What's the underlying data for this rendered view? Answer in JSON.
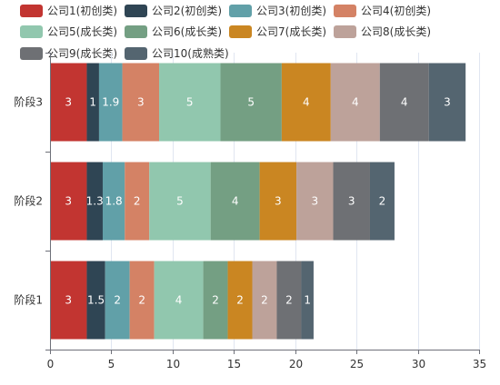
{
  "chart_data": {
    "type": "bar",
    "orientation": "horizontal",
    "stacked": true,
    "categories": [
      "阶段1",
      "阶段2",
      "阶段3"
    ],
    "xlim": [
      0,
      35
    ],
    "xticks": [
      0,
      5,
      10,
      15,
      20,
      25,
      30,
      35
    ],
    "legend_position": "top",
    "grid": "vertical",
    "series": [
      {
        "name": "公司1(初创类)",
        "color": "#c23531",
        "values": [
          3,
          3,
          3
        ]
      },
      {
        "name": "公司2(初创类)",
        "color": "#2f4554",
        "values": [
          1.5,
          1.3,
          1
        ]
      },
      {
        "name": "公司3(初创类)",
        "color": "#61a0a8",
        "values": [
          2,
          1.8,
          1.9
        ]
      },
      {
        "name": "公司4(初创类)",
        "color": "#d48265",
        "values": [
          2,
          2,
          3
        ]
      },
      {
        "name": "公司5(成长类)",
        "color": "#91c7ae",
        "values": [
          4,
          5,
          5
        ]
      },
      {
        "name": "公司6(成长类)",
        "color": "#749f83",
        "values": [
          2,
          4,
          5
        ]
      },
      {
        "name": "公司7(成长类)",
        "color": "#ca8622",
        "values": [
          2,
          3,
          4
        ]
      },
      {
        "name": "公司8(成长类)",
        "color": "#bda29a",
        "values": [
          2,
          3,
          4
        ]
      },
      {
        "name": "公司9(成长类)",
        "color": "#6e7074",
        "values": [
          2,
          3,
          4
        ]
      },
      {
        "name": "公司10(成熟类)",
        "color": "#546570",
        "values": [
          1,
          2,
          3
        ]
      }
    ]
  }
}
